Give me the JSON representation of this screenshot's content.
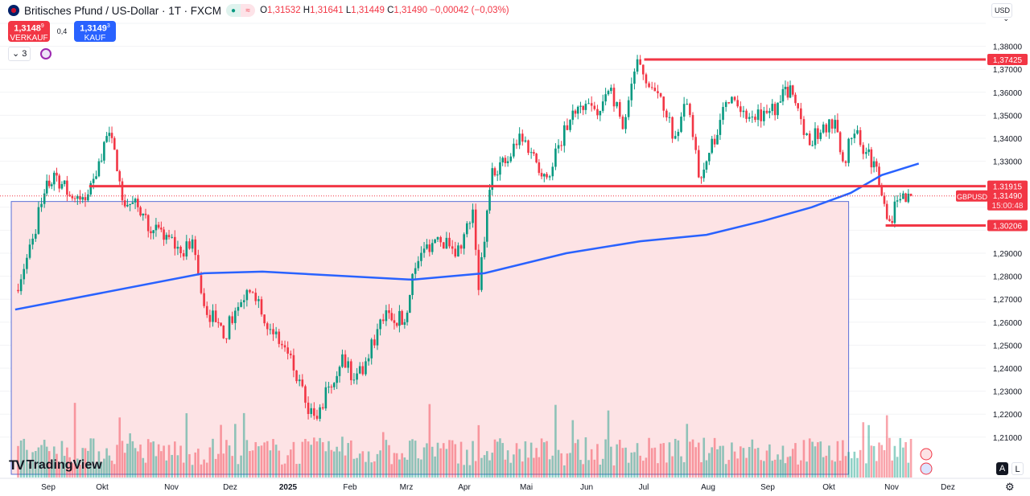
{
  "header": {
    "title": "Britisches Pfund / US-Dollar · 1T · FXCM",
    "open_label": "O",
    "open": "1,31532",
    "high_label": "H",
    "high": "1,31641",
    "low_label": "L",
    "low": "1,31449",
    "close_label": "C",
    "close": "1,31490",
    "change": "−0,00042 (−0,03%)",
    "market_status_icon": "dot-icon",
    "delay_icon": "approx-icon"
  },
  "trade": {
    "sell_price": "1,3148",
    "sell_sup": "9",
    "sell_label": "VERKAUF",
    "spread": "0,4",
    "buy_price": "1,3149",
    "buy_sup": "3",
    "buy_label": "KAUF"
  },
  "indicators": {
    "count_label": "3"
  },
  "currency": "USD",
  "branding": "TradingView",
  "scale_buttons": {
    "auto": "A",
    "log": "L"
  },
  "colors": {
    "up": "#089981",
    "down": "#f23645",
    "ma": "#2962ff",
    "level": "#f23645",
    "zone": "#fde3e5"
  },
  "chart_data": {
    "type": "candlestick",
    "symbol": "GBPUSD",
    "ylim": [
      1.2,
      1.39
    ],
    "y_ticks": [
      "1,38000",
      "1,37000",
      "1,36000",
      "1,35000",
      "1,34000",
      "1,33000",
      "1,29000",
      "1,28000",
      "1,27000",
      "1,26000",
      "1,25000",
      "1,24000",
      "1,23000",
      "1,22000",
      "1,21000"
    ],
    "x_ticks": [
      "Sep",
      "Okt",
      "Nov",
      "Dez",
      "2025",
      "Feb",
      "Mrz",
      "Apr",
      "Mai",
      "Jun",
      "Jul",
      "Aug",
      "Sep",
      "Okt",
      "Nov",
      "Dez"
    ],
    "close_path": [
      [
        "2024-08-15",
        1.274
      ],
      [
        "2024-08-21",
        1.288
      ],
      [
        "2024-08-30",
        1.316
      ],
      [
        "2024-09-04",
        1.325
      ],
      [
        "2024-09-12",
        1.315
      ],
      [
        "2024-09-20",
        1.313
      ],
      [
        "2024-09-27",
        1.33
      ],
      [
        "2024-10-01",
        1.341
      ],
      [
        "2024-10-05",
        1.335
      ],
      [
        "2024-10-09",
        1.313
      ],
      [
        "2024-10-17",
        1.31
      ],
      [
        "2024-10-25",
        1.3
      ],
      [
        "2024-11-02",
        1.297
      ],
      [
        "2024-11-08",
        1.29
      ],
      [
        "2024-11-14",
        1.296
      ],
      [
        "2024-11-20",
        1.267
      ],
      [
        "2024-11-26",
        1.26
      ],
      [
        "2024-11-30",
        1.253
      ],
      [
        "2024-12-06",
        1.265
      ],
      [
        "2024-12-12",
        1.274
      ],
      [
        "2024-12-18",
        1.27
      ],
      [
        "2024-12-24",
        1.257
      ],
      [
        "2024-12-30",
        1.25
      ],
      [
        "2025-01-05",
        1.239
      ],
      [
        "2025-01-11",
        1.225
      ],
      [
        "2025-01-17",
        1.218
      ],
      [
        "2025-01-23",
        1.232
      ],
      [
        "2025-01-30",
        1.246
      ],
      [
        "2025-02-05",
        1.235
      ],
      [
        "2025-02-11",
        1.243
      ],
      [
        "2025-02-17",
        1.257
      ],
      [
        "2025-02-23",
        1.264
      ],
      [
        "2025-03-03",
        1.26
      ],
      [
        "2025-03-07",
        1.281
      ],
      [
        "2025-03-13",
        1.292
      ],
      [
        "2025-03-20",
        1.297
      ],
      [
        "2025-03-26",
        1.293
      ],
      [
        "2025-04-01",
        1.292
      ],
      [
        "2025-04-07",
        1.309
      ],
      [
        "2025-04-10",
        1.274
      ],
      [
        "2025-04-13",
        1.295
      ],
      [
        "2025-04-17",
        1.327
      ],
      [
        "2025-04-25",
        1.33
      ],
      [
        "2025-05-01",
        1.342
      ],
      [
        "2025-05-07",
        1.334
      ],
      [
        "2025-05-15",
        1.323
      ],
      [
        "2025-05-21",
        1.337
      ],
      [
        "2025-05-27",
        1.348
      ],
      [
        "2025-06-04",
        1.355
      ],
      [
        "2025-06-10",
        1.35
      ],
      [
        "2025-06-17",
        1.362
      ],
      [
        "2025-06-23",
        1.344
      ],
      [
        "2025-06-29",
        1.369
      ],
      [
        "2025-07-02",
        1.372
      ],
      [
        "2025-07-08",
        1.362
      ],
      [
        "2025-07-14",
        1.352
      ],
      [
        "2025-07-20",
        1.341
      ],
      [
        "2025-07-26",
        1.355
      ],
      [
        "2025-08-01",
        1.323
      ],
      [
        "2025-08-05",
        1.33
      ],
      [
        "2025-08-12",
        1.348
      ],
      [
        "2025-08-18",
        1.358
      ],
      [
        "2025-08-24",
        1.352
      ],
      [
        "2025-08-30",
        1.348
      ],
      [
        "2025-09-05",
        1.351
      ],
      [
        "2025-09-12",
        1.356
      ],
      [
        "2025-09-17",
        1.363
      ],
      [
        "2025-09-21",
        1.353
      ],
      [
        "2025-09-27",
        1.337
      ],
      [
        "2025-10-04",
        1.346
      ],
      [
        "2025-10-10",
        1.348
      ],
      [
        "2025-10-14",
        1.33
      ],
      [
        "2025-10-20",
        1.342
      ],
      [
        "2025-10-26",
        1.334
      ],
      [
        "2025-10-30",
        1.33
      ],
      [
        "2025-11-03",
        1.315
      ],
      [
        "2025-11-07",
        1.304
      ],
      [
        "2025-11-11",
        1.313
      ],
      [
        "2025-11-14",
        1.316
      ],
      [
        "2025-11-18",
        1.3149
      ]
    ],
    "moving_average": [
      [
        "2024-08-15",
        1.2655
      ],
      [
        "2024-11-20",
        1.2813
      ],
      [
        "2024-12-20",
        1.282
      ],
      [
        "2025-03-07",
        1.2785
      ],
      [
        "2025-04-13",
        1.2813
      ],
      [
        "2025-05-25",
        1.29
      ],
      [
        "2025-07-02",
        1.2952
      ],
      [
        "2025-08-05",
        1.298
      ],
      [
        "2025-09-03",
        1.304
      ],
      [
        "2025-09-28",
        1.31
      ],
      [
        "2025-10-18",
        1.3162
      ],
      [
        "2025-11-03",
        1.324
      ],
      [
        "2025-11-22",
        1.329
      ]
    ],
    "levels": [
      {
        "price": 1.37425,
        "label": "1,37425",
        "from": "2025-07-04"
      },
      {
        "price": 1.31915,
        "label": "1,31915",
        "from": "2024-09-22"
      },
      {
        "price": 1.30206,
        "label": "1,30206",
        "from": "2025-11-05"
      }
    ],
    "zone": {
      "from": "2024-08-13",
      "to": "2025-10-17",
      "top": 1.3125,
      "bottom": 1.2
    },
    "last": {
      "symbol": "GBPUSD",
      "price": "1,31490",
      "countdown": "15:00:48"
    }
  }
}
